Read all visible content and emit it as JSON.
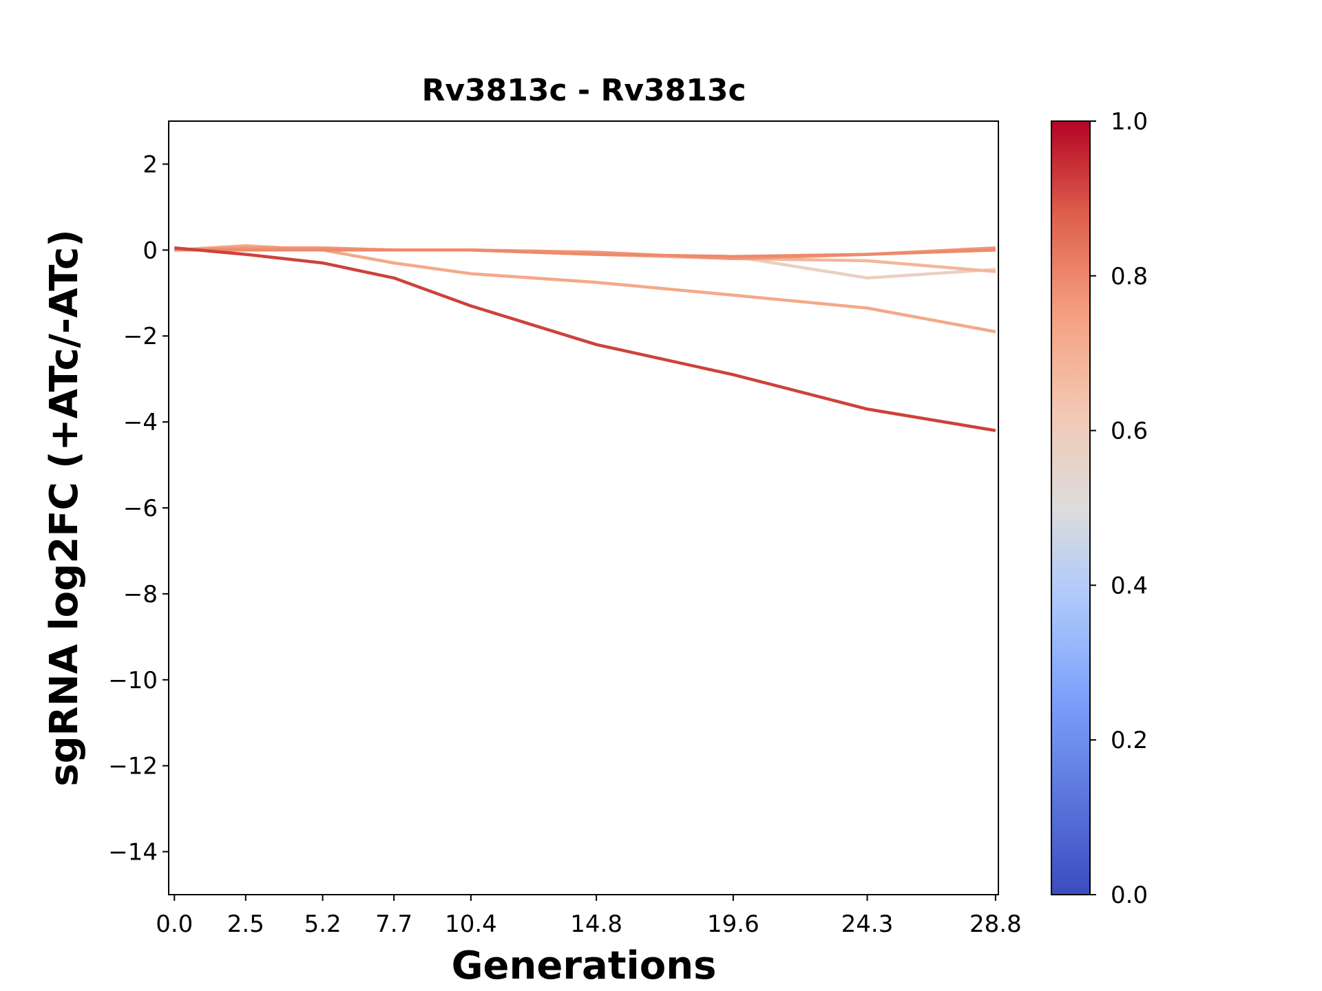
{
  "chart_data": {
    "type": "line",
    "title": "Rv3813c - Rv3813c",
    "xlabel": "Generations",
    "ylabel": "sgRNA log2FC (+ATc/-ATc)",
    "x": [
      0.0,
      2.5,
      5.2,
      7.7,
      10.4,
      14.8,
      19.6,
      24.3,
      28.8
    ],
    "x_tick_labels": [
      "0.0",
      "2.5",
      "5.2",
      "7.7",
      "10.4",
      "14.8",
      "19.6",
      "24.3",
      "28.8"
    ],
    "xlim": [
      -0.2,
      28.9
    ],
    "ylim": [
      -15,
      3
    ],
    "y_ticks": [
      2,
      0,
      -2,
      -4,
      -6,
      -8,
      -10,
      -12,
      -14
    ],
    "y_tick_labels": [
      "2",
      "0",
      "−2",
      "−4",
      "−6",
      "−8",
      "−10",
      "−12",
      "−14"
    ],
    "series": [
      {
        "color_value": 0.62,
        "color": "#ead0c1",
        "values": [
          0.0,
          0.0,
          0.0,
          0.0,
          0.0,
          -0.1,
          -0.15,
          -0.65,
          -0.45
        ]
      },
      {
        "color_value": 0.72,
        "color": "#f3b69a",
        "values": [
          0.0,
          0.0,
          0.0,
          0.0,
          0.0,
          -0.1,
          -0.2,
          -0.25,
          -0.5
        ]
      },
      {
        "color_value": 0.74,
        "color": "#f4a987",
        "values": [
          0.0,
          0.1,
          0.0,
          -0.3,
          -0.55,
          -0.75,
          -1.05,
          -1.35,
          -1.9
        ]
      },
      {
        "color_value": 0.78,
        "color": "#f0967a",
        "values": [
          0.0,
          0.05,
          0.05,
          0.0,
          0.0,
          -0.05,
          -0.2,
          -0.1,
          0.05
        ]
      },
      {
        "color_value": 0.8,
        "color": "#ee8a6c",
        "values": [
          0.0,
          0.0,
          0.0,
          0.0,
          0.0,
          -0.1,
          -0.15,
          -0.1,
          0.0
        ]
      },
      {
        "color_value": 0.92,
        "color": "#cd423b",
        "values": [
          0.05,
          -0.1,
          -0.3,
          -0.65,
          -1.3,
          -2.2,
          -2.9,
          -3.7,
          -4.2
        ]
      }
    ],
    "colorbar": {
      "range": [
        0.0,
        1.0
      ],
      "tick_values": [
        1.0,
        0.8,
        0.6,
        0.4,
        0.2,
        0.0
      ],
      "tick_labels": [
        "1.0",
        "0.8",
        "0.6",
        "0.4",
        "0.2",
        "0.0"
      ],
      "colormap": "coolwarm",
      "stops": [
        {
          "value": 0.0,
          "color": "#3b4cc0"
        },
        {
          "value": 0.25,
          "color": "#7b9ff9"
        },
        {
          "value": 0.38,
          "color": "#adc8fd"
        },
        {
          "value": 0.5,
          "color": "#dddcdc"
        },
        {
          "value": 0.62,
          "color": "#f2c9b4"
        },
        {
          "value": 0.75,
          "color": "#f5a081"
        },
        {
          "value": 0.88,
          "color": "#dd5f4b"
        },
        {
          "value": 1.0,
          "color": "#b40426"
        }
      ]
    }
  }
}
